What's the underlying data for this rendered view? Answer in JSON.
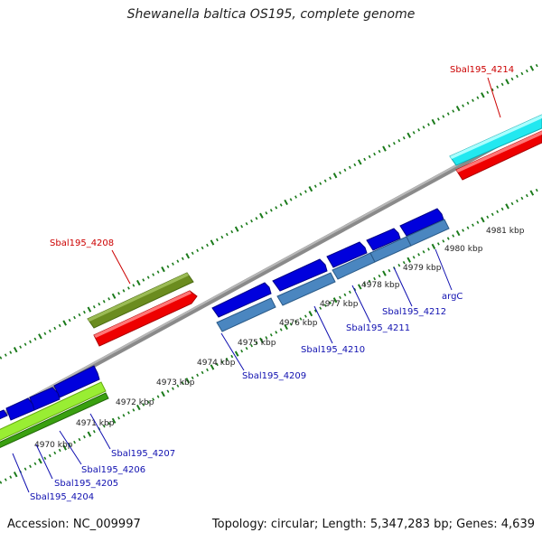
{
  "title": "Shewanella baltica OS195, complete genome",
  "footer": {
    "accession": "Accession: NC_009997",
    "topology": "Topology: circular; Length: 5,347,283 bp; Genes: 4,639"
  },
  "colors": {
    "background": "#ffffff",
    "backbone": "#8a8a8a",
    "tick_green": "#1a7a1a",
    "forward_gene": "#0000dd",
    "reverse_gene": "#4a86c0",
    "cds_red": "#ee0000",
    "highlight_olive": "#6b8c1f",
    "highlight_cyan": "#22e8f0",
    "highlight_lime": "#99ee33",
    "label_blue": "#1010b0",
    "label_red": "#cc0000",
    "kbp_text": "#222222"
  },
  "ruler": {
    "ticks": [
      {
        "label": "4970 kbp"
      },
      {
        "label": "4971 kbp"
      },
      {
        "label": "4972 kbp"
      },
      {
        "label": "4973 kbp"
      },
      {
        "label": "4974 kbp"
      },
      {
        "label": "4975 kbp"
      },
      {
        "label": "4976 kbp"
      },
      {
        "label": "4977 kbp"
      },
      {
        "label": "4978 kbp"
      },
      {
        "label": "4979 kbp"
      },
      {
        "label": "4980 kbp"
      },
      {
        "label": "4981 kbp"
      }
    ]
  },
  "gene_labels": {
    "top": [
      {
        "text": "Sbal195_4208"
      },
      {
        "text": "Sbal195_4214"
      }
    ],
    "bottom": [
      {
        "text": "Sbal195_4204"
      },
      {
        "text": "Sbal195_4205"
      },
      {
        "text": "Sbal195_4206"
      },
      {
        "text": "Sbal195_4207"
      },
      {
        "text": "Sbal195_4209"
      },
      {
        "text": "Sbal195_4210"
      },
      {
        "text": "Sbal195_4211"
      },
      {
        "text": "Sbal195_4212"
      },
      {
        "text": "argC"
      }
    ]
  }
}
